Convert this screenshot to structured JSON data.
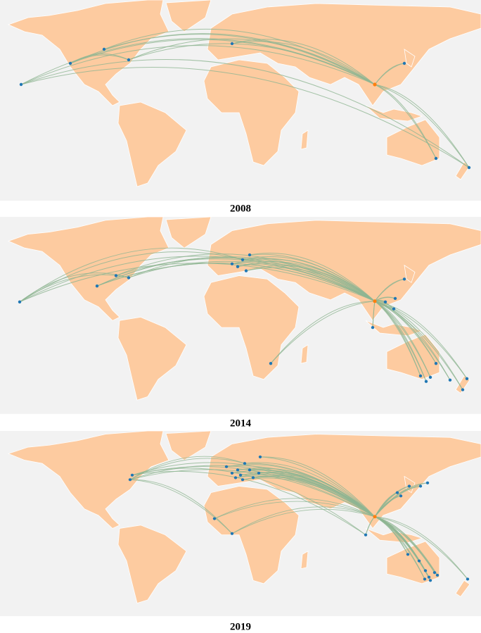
{
  "figure": {
    "panels": [
      {
        "caption": "2008"
      },
      {
        "caption": "2014"
      },
      {
        "caption": "2019"
      }
    ]
  }
}
